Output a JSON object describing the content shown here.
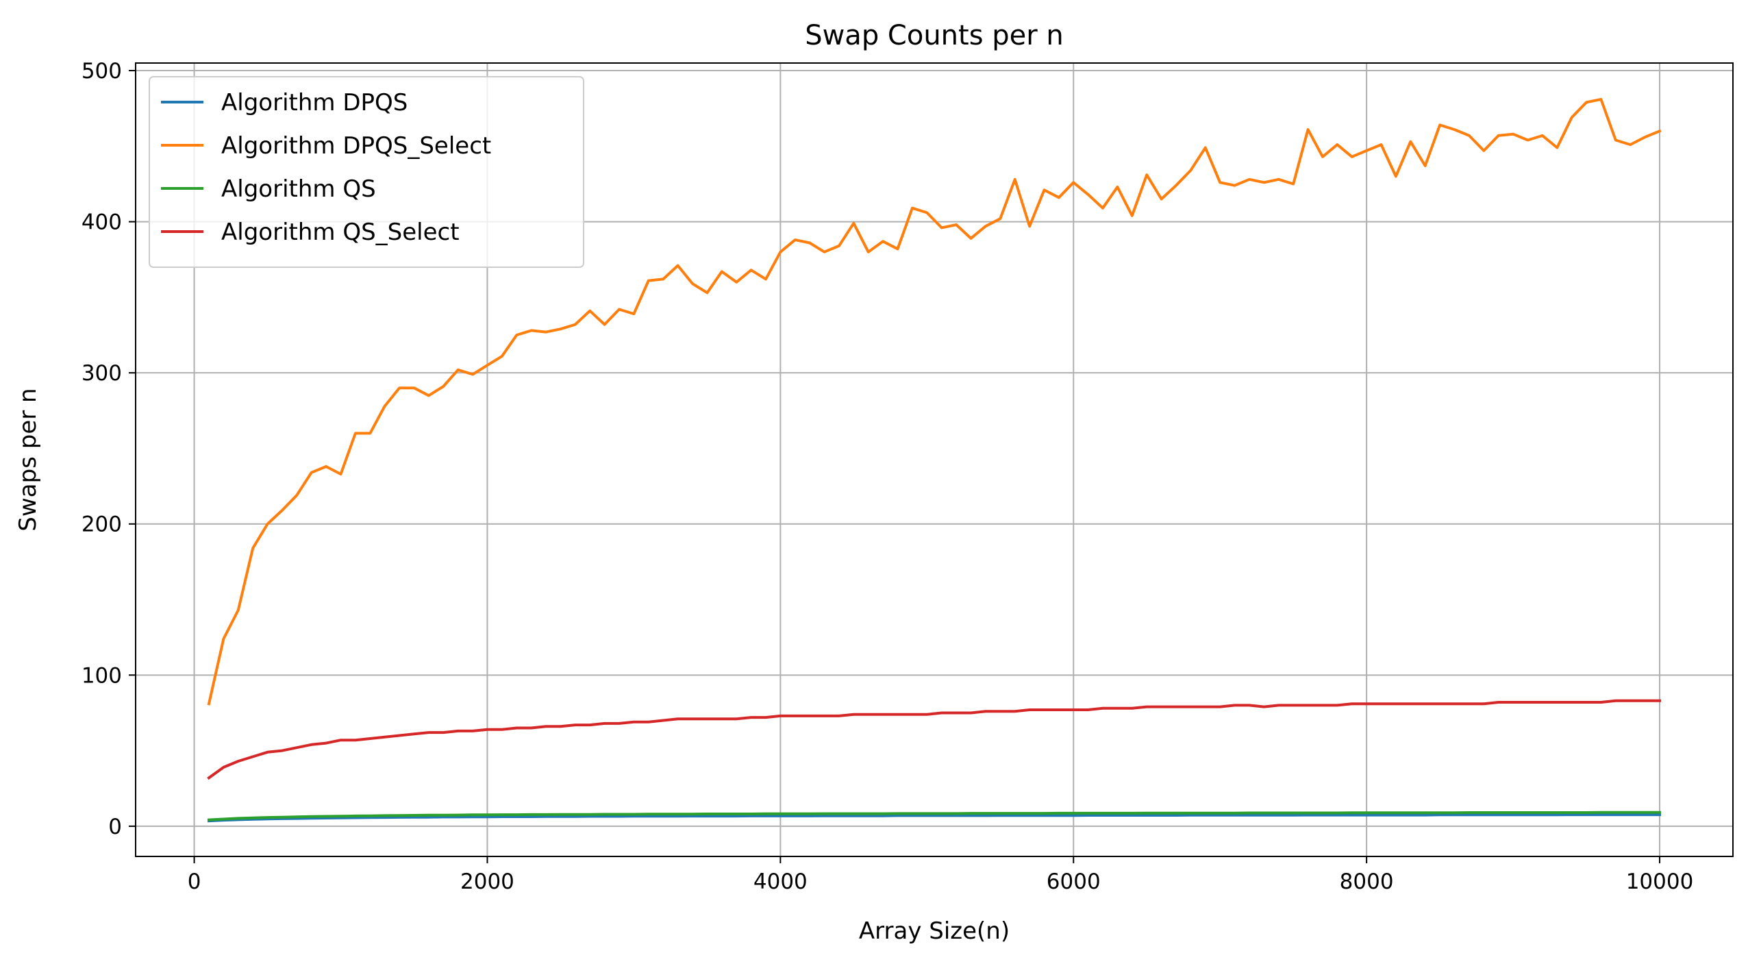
{
  "chart_data": {
    "type": "line",
    "title": "Swap Counts per n",
    "xlabel": "Array Size(n)",
    "ylabel": "Swaps per n",
    "xlim": [
      -400,
      10500
    ],
    "ylim": [
      -20,
      505
    ],
    "xticks": [
      0,
      2000,
      4000,
      6000,
      8000,
      10000
    ],
    "yticks": [
      0,
      100,
      200,
      300,
      400,
      500
    ],
    "grid": true,
    "legend_position": "upper-left",
    "x": [
      100,
      200,
      300,
      400,
      500,
      600,
      700,
      800,
      900,
      1000,
      1100,
      1200,
      1300,
      1400,
      1500,
      1600,
      1700,
      1800,
      1900,
      2000,
      2100,
      2200,
      2300,
      2400,
      2500,
      2600,
      2700,
      2800,
      2900,
      3000,
      3100,
      3200,
      3300,
      3400,
      3500,
      3600,
      3700,
      3800,
      3900,
      4000,
      4100,
      4200,
      4300,
      4400,
      4500,
      4600,
      4700,
      4800,
      4900,
      5000,
      5100,
      5200,
      5300,
      5400,
      5500,
      5600,
      5700,
      5800,
      5900,
      6000,
      6100,
      6200,
      6300,
      6400,
      6500,
      6600,
      6700,
      6800,
      6900,
      7000,
      7100,
      7200,
      7300,
      7400,
      7500,
      7600,
      7700,
      7800,
      7900,
      8000,
      8100,
      8200,
      8300,
      8400,
      8500,
      8600,
      8700,
      8800,
      8900,
      9000,
      9100,
      9200,
      9300,
      9400,
      9500,
      9600,
      9700,
      9800,
      9900,
      10000
    ],
    "series": [
      {
        "name": "Algorithm DPQS",
        "color": "#1f77b4",
        "values": [
          3.5,
          4,
          4.3,
          4.6,
          4.8,
          5,
          5.1,
          5.3,
          5.4,
          5.5,
          5.6,
          5.7,
          5.8,
          5.9,
          6,
          6,
          6.1,
          6.1,
          6.2,
          6.2,
          6.3,
          6.3,
          6.3,
          6.4,
          6.4,
          6.4,
          6.5,
          6.5,
          6.5,
          6.6,
          6.6,
          6.6,
          6.6,
          6.7,
          6.7,
          6.7,
          6.7,
          6.8,
          6.8,
          6.8,
          6.8,
          6.8,
          6.9,
          6.9,
          6.9,
          6.9,
          6.9,
          7,
          7,
          7,
          7,
          7,
          7,
          7,
          7.1,
          7.1,
          7.1,
          7.1,
          7.1,
          7.1,
          7.2,
          7.2,
          7.2,
          7.2,
          7.2,
          7.2,
          7.2,
          7.3,
          7.3,
          7.3,
          7.3,
          7.3,
          7.3,
          7.3,
          7.3,
          7.4,
          7.4,
          7.4,
          7.4,
          7.4,
          7.4,
          7.4,
          7.4,
          7.4,
          7.5,
          7.5,
          7.5,
          7.5,
          7.5,
          7.5,
          7.5,
          7.5,
          7.5,
          7.6,
          7.6,
          7.6,
          7.6,
          7.6,
          7.6,
          7.6
        ]
      },
      {
        "name": "Algorithm DPQS_Select",
        "color": "#ff7f0e",
        "values": [
          81,
          124,
          143,
          184,
          200,
          209,
          219,
          234,
          238,
          233,
          260,
          260,
          278,
          290,
          290,
          285,
          291,
          302,
          299,
          305,
          311,
          325,
          328,
          327,
          329,
          332,
          341,
          332,
          342,
          339,
          361,
          362,
          371,
          359,
          353,
          367,
          360,
          368,
          362,
          380,
          388,
          386,
          380,
          384,
          399,
          380,
          387,
          382,
          409,
          406,
          396,
          398,
          389,
          397,
          402,
          428,
          397,
          421,
          416,
          426,
          418,
          409,
          423,
          404,
          431,
          415,
          424,
          434,
          449,
          426,
          424,
          428,
          426,
          428,
          425,
          461,
          443,
          451,
          443,
          447,
          451,
          430,
          453,
          437,
          464,
          461,
          457,
          447,
          457,
          458,
          454,
          457,
          449,
          469,
          479,
          481,
          454,
          451,
          456,
          460
        ]
      },
      {
        "name": "Algorithm QS",
        "color": "#2ca02c",
        "values": [
          4.2,
          4.7,
          5.2,
          5.5,
          5.8,
          6,
          6.2,
          6.4,
          6.5,
          6.6,
          6.8,
          6.9,
          7,
          7.1,
          7.2,
          7.3,
          7.3,
          7.4,
          7.5,
          7.5,
          7.6,
          7.6,
          7.7,
          7.7,
          7.8,
          7.8,
          7.8,
          7.9,
          7.9,
          7.9,
          8,
          8,
          8,
          8,
          8.1,
          8.1,
          8.1,
          8.1,
          8.2,
          8.2,
          8.2,
          8.2,
          8.3,
          8.3,
          8.3,
          8.3,
          8.3,
          8.4,
          8.4,
          8.4,
          8.4,
          8.4,
          8.5,
          8.5,
          8.5,
          8.5,
          8.5,
          8.5,
          8.6,
          8.6,
          8.6,
          8.6,
          8.6,
          8.6,
          8.7,
          8.7,
          8.7,
          8.7,
          8.7,
          8.7,
          8.7,
          8.8,
          8.8,
          8.8,
          8.8,
          8.8,
          8.8,
          8.8,
          8.9,
          8.9,
          8.9,
          8.9,
          8.9,
          8.9,
          8.9,
          8.9,
          9,
          9,
          9,
          9,
          9,
          9,
          9,
          9,
          9,
          9.1,
          9.1,
          9.1,
          9.1,
          9.1
        ]
      },
      {
        "name": "Algorithm QS_Select",
        "color": "#d62728",
        "values": [
          32,
          39,
          43,
          46,
          49,
          50,
          52,
          54,
          55,
          57,
          57,
          58,
          59,
          60,
          61,
          62,
          62,
          63,
          63,
          64,
          64,
          65,
          65,
          66,
          66,
          67,
          67,
          68,
          68,
          69,
          69,
          70,
          71,
          71,
          71,
          71,
          71,
          72,
          72,
          73,
          73,
          73,
          73,
          73,
          74,
          74,
          74,
          74,
          74,
          74,
          75,
          75,
          75,
          76,
          76,
          76,
          77,
          77,
          77,
          77,
          77,
          78,
          78,
          78,
          79,
          79,
          79,
          79,
          79,
          79,
          80,
          80,
          79,
          80,
          80,
          80,
          80,
          80,
          81,
          81,
          81,
          81,
          81,
          81,
          81,
          81,
          81,
          81,
          82,
          82,
          82,
          82,
          82,
          82,
          82,
          82,
          83,
          83,
          83,
          83
        ]
      }
    ]
  }
}
